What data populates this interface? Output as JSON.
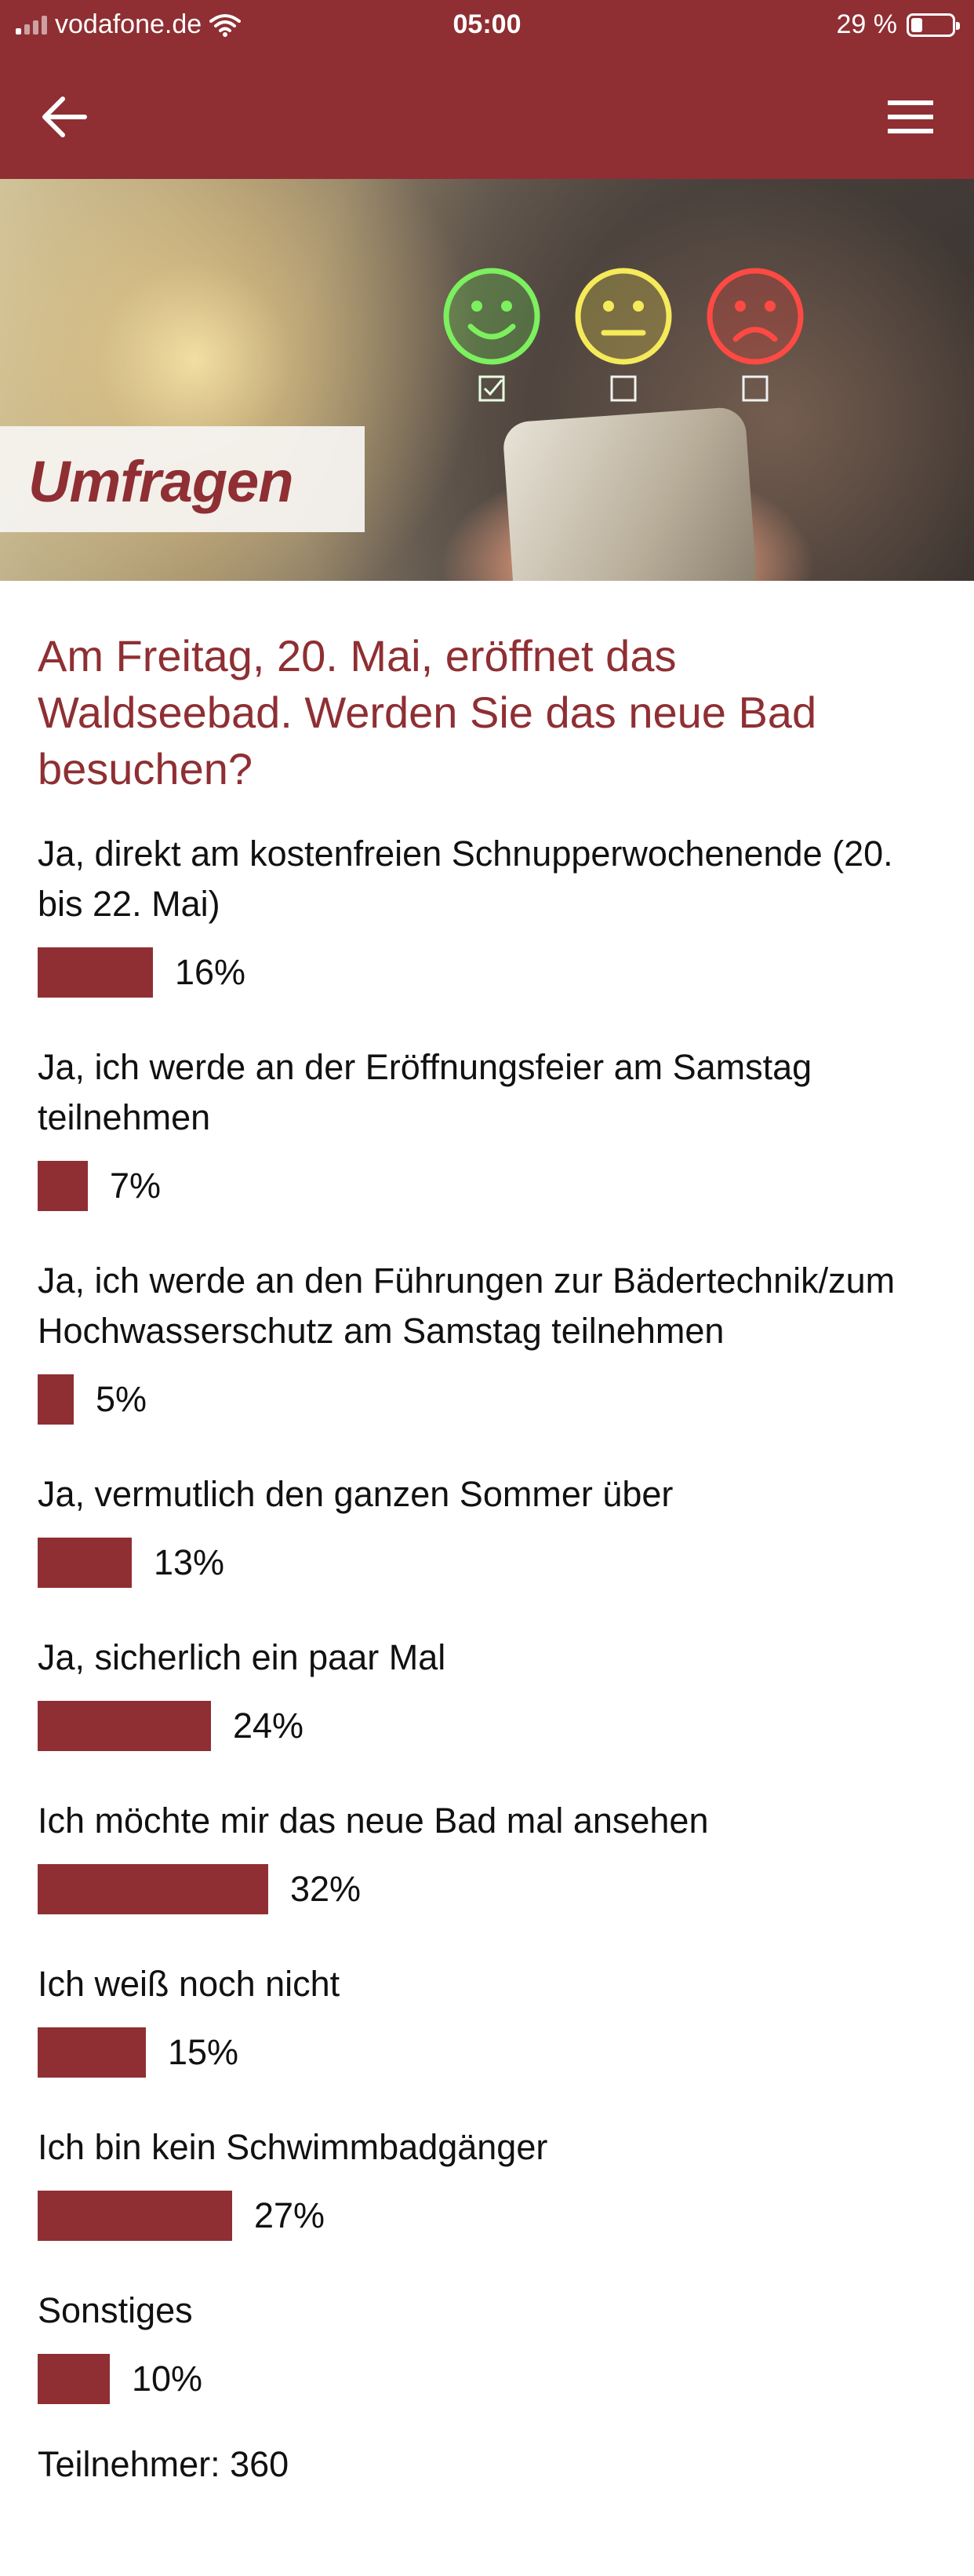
{
  "status_bar": {
    "carrier": "vodafone.de",
    "time": "05:00",
    "battery": "29 %"
  },
  "nav": {
    "back_icon": "arrow-left-icon",
    "menu_icon": "hamburger-menu-icon"
  },
  "hero": {
    "label": "Umfragen",
    "smileys": [
      "happy-face-icon",
      "neutral-face-icon",
      "sad-face-icon"
    ],
    "colors": {
      "happy": "#5ee04a",
      "neutral": "#f2e34a",
      "sad": "#ef3a36"
    }
  },
  "poll": {
    "question": "Am Freitag, 20. Mai, eröffnet das Waldseebad. Werden Sie das neue Bad besuchen?",
    "options": [
      {
        "label": "Ja, direkt am kostenfreien Schnupperwochenende (20. bis 22. Mai)",
        "percent": 16,
        "percent_label": "16%"
      },
      {
        "label": "Ja, ich werde an der Eröffnungsfeier am Samstag teilnehmen",
        "percent": 7,
        "percent_label": "7%"
      },
      {
        "label": "Ja, ich werde an den Führungen zur Bädertechnik/zum Hochwasserschutz am Samstag teilnehmen",
        "percent": 5,
        "percent_label": "5%"
      },
      {
        "label": "Ja, vermutlich den ganzen Sommer über",
        "percent": 13,
        "percent_label": "13%"
      },
      {
        "label": "Ja, sicherlich ein paar Mal",
        "percent": 24,
        "percent_label": "24%"
      },
      {
        "label": "Ich möchte mir das neue Bad mal ansehen",
        "percent": 32,
        "percent_label": "32%"
      },
      {
        "label": "Ich weiß noch nicht",
        "percent": 15,
        "percent_label": "15%"
      },
      {
        "label": "Ich bin kein Schwimmbadgänger",
        "percent": 27,
        "percent_label": "27%"
      },
      {
        "label": "Sonstiges",
        "percent": 10,
        "percent_label": "10%"
      }
    ],
    "participants": "Teilnehmer: 360"
  },
  "colors": {
    "brand": "#8f2f33",
    "text": "#111111",
    "background": "#ffffff"
  }
}
